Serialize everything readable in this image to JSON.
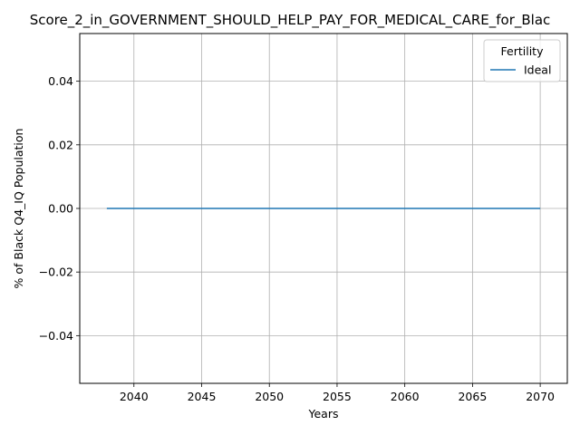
{
  "chart_data": {
    "type": "line",
    "title": "Score_2_in_GOVERNMENT_SHOULD_HELP_PAY_FOR_MEDICAL_CARE_for_Blac",
    "xlabel": "Years",
    "ylabel": "% of Black Q4_IQ Population",
    "xlim": [
      2036,
      2072
    ],
    "ylim": [
      -0.055,
      0.055
    ],
    "x_ticks": [
      2040,
      2045,
      2050,
      2055,
      2060,
      2065,
      2070
    ],
    "y_ticks": [
      -0.04,
      -0.02,
      0.0,
      0.02,
      0.04
    ],
    "y_tick_labels": [
      "−0.04",
      "−0.02",
      "0.00",
      "0.02",
      "0.04"
    ],
    "grid": true,
    "legend": {
      "title": "Fertility",
      "placement": "top-right"
    },
    "series": [
      {
        "name": "Ideal",
        "color": "#1f77b4",
        "x": [
          2038,
          2042,
          2046,
          2050,
          2054,
          2058,
          2062,
          2066,
          2070
        ],
        "y": [
          0,
          0,
          0,
          0,
          0,
          0,
          0,
          0,
          0
        ]
      }
    ]
  }
}
